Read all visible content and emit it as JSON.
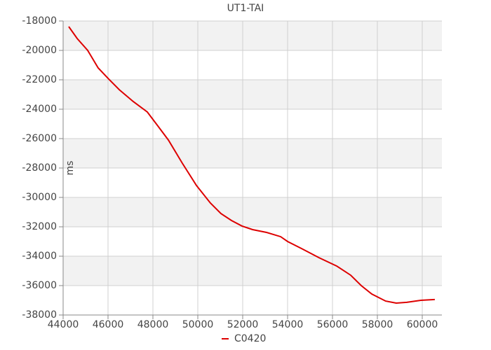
{
  "chart_data": {
    "type": "line",
    "title": "UT1-TAI",
    "y_label": "ms",
    "x": [
      44250,
      44625,
      45094,
      45560,
      46030,
      46500,
      47125,
      47750,
      48220,
      48690,
      49310,
      49940,
      50560,
      51030,
      51500,
      51970,
      52440,
      53060,
      53690,
      54000,
      54625,
      55400,
      56190,
      56810,
      57280,
      57750,
      58370,
      58840,
      59310,
      59940,
      60560
    ],
    "series": [
      {
        "name": "C0420",
        "color": "#dd0000",
        "values": [
          -18380,
          -19190,
          -20000,
          -21190,
          -21950,
          -22670,
          -23480,
          -24190,
          -25140,
          -26100,
          -27670,
          -29190,
          -30380,
          -31100,
          -31570,
          -31950,
          -32190,
          -32380,
          -32670,
          -33000,
          -33480,
          -34100,
          -34670,
          -35290,
          -36000,
          -36570,
          -37050,
          -37190,
          -37140,
          -37000,
          -36950
        ]
      }
    ],
    "xlim": [
      44000,
      60875
    ],
    "xticks": [
      44000,
      46000,
      48000,
      50000,
      52000,
      54000,
      56000,
      58000,
      60000
    ],
    "ylim": [
      -38000,
      -18000
    ],
    "yticks": [
      -38000,
      -36000,
      -34000,
      -32000,
      -30000,
      -28000,
      -26000,
      -24000,
      -22000,
      -20000,
      -18000
    ],
    "grid": true,
    "band_color": "#f2f2f2",
    "legend": "bottom"
  }
}
